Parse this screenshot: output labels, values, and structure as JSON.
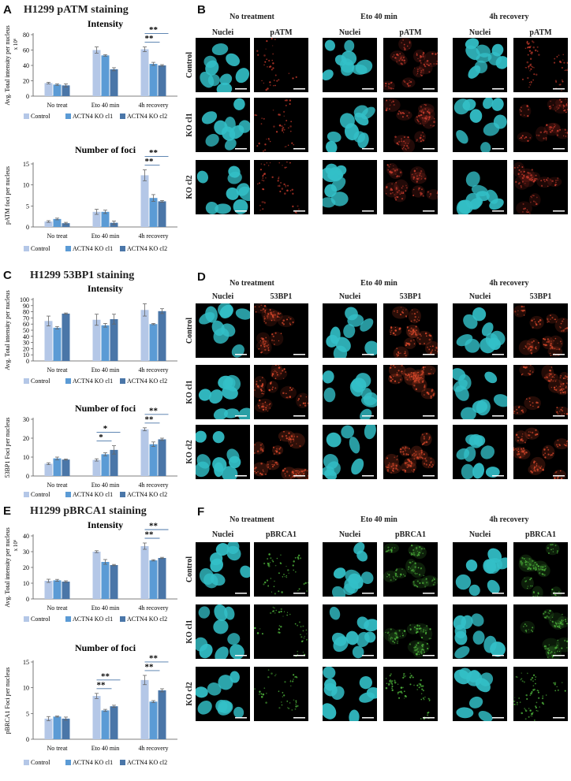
{
  "panels": {
    "A": {
      "letter": "A",
      "title": "H1299 pATM staining"
    },
    "B": {
      "letter": "B",
      "marker": "pATM"
    },
    "C": {
      "letter": "C",
      "title": "H1299 53BP1 staining"
    },
    "D": {
      "letter": "D",
      "marker": "53BP1"
    },
    "E": {
      "letter": "E",
      "title": "H1299 pBRCA1 staining"
    },
    "F": {
      "letter": "F",
      "marker": "pBRCA1"
    }
  },
  "micro_labels": {
    "conditions": [
      "No treatment",
      "Eto  40 min",
      "4h recovery"
    ],
    "nuclei": "Nuclei",
    "rows": [
      "Control",
      "KO cl1",
      "KO cl2"
    ]
  },
  "colors": {
    "control": "#b4c7e7",
    "cl1": "#5b9bd5",
    "cl2": "#4a76a8",
    "nuclei": "#33c0c8",
    "pATM": "#c0392b",
    "53BP1": "#d2462a",
    "pBRCA1": "#4caf3a"
  },
  "chart_data": [
    {
      "id": "A-intensity",
      "type": "bar",
      "title": "Intensity",
      "ylabel": "Avg. Total intensity per nucleus",
      "yunit": "x 10⁶",
      "ylim": [
        0,
        80
      ],
      "yticks": [
        0,
        20,
        40,
        60,
        80
      ],
      "categories": [
        "No treat",
        "Eto 40 min",
        "4h recovery"
      ],
      "series": [
        {
          "name": "Control",
          "values": [
            17,
            60,
            61
          ],
          "errors": [
            1,
            4,
            3
          ]
        },
        {
          "name": "ACTN4 KO cl1",
          "values": [
            15,
            53,
            42
          ],
          "errors": [
            1,
            1,
            2
          ]
        },
        {
          "name": "ACTN4 KO cl2",
          "values": [
            14,
            35,
            40
          ],
          "errors": [
            2,
            2,
            1
          ]
        }
      ],
      "significance": [
        {
          "category": 2,
          "from": 0,
          "to": 1,
          "label": "**"
        },
        {
          "category": 2,
          "from": 0,
          "to": 2,
          "label": "**"
        }
      ]
    },
    {
      "id": "A-foci",
      "type": "bar",
      "title": "Number of foci",
      "ylabel": "pATM foci per nucleus",
      "yunit": "",
      "ylim": [
        0,
        15
      ],
      "yticks": [
        0,
        5,
        10,
        15
      ],
      "categories": [
        "No treat",
        "Eto 40 min",
        "4h recovery"
      ],
      "series": [
        {
          "name": "Control",
          "values": [
            1.3,
            3.6,
            12.3
          ],
          "errors": [
            0.2,
            0.6,
            1.3
          ]
        },
        {
          "name": "ACTN4 KO cl1",
          "values": [
            1.9,
            3.6,
            6.9
          ],
          "errors": [
            0.2,
            0.4,
            0.8
          ]
        },
        {
          "name": "ACTN4 KO cl2",
          "values": [
            0.9,
            1.0,
            6.1
          ],
          "errors": [
            0.2,
            0.4,
            0.2
          ]
        }
      ],
      "significance": [
        {
          "category": 2,
          "from": 0,
          "to": 1,
          "label": "**"
        },
        {
          "category": 2,
          "from": 0,
          "to": 2,
          "label": "**"
        }
      ]
    },
    {
      "id": "C-intensity",
      "type": "bar",
      "title": "Intensity",
      "ylabel": "Avg. Total intensity per nucleus",
      "yunit": "",
      "ylim": [
        0,
        100
      ],
      "yticks": [
        0,
        10,
        20,
        30,
        40,
        50,
        60,
        70,
        80,
        90,
        100
      ],
      "categories": [
        "No treat",
        "Eto 40 min",
        "4h recovery"
      ],
      "series": [
        {
          "name": "Control",
          "values": [
            65,
            67,
            83
          ],
          "errors": [
            8,
            9,
            10
          ]
        },
        {
          "name": "ACTN4 KO cl1",
          "values": [
            54,
            58,
            60
          ],
          "errors": [
            2,
            3,
            1
          ]
        },
        {
          "name": "ACTN4 KO cl2",
          "values": [
            77,
            68,
            81
          ],
          "errors": [
            1,
            8,
            4
          ]
        }
      ],
      "significance": []
    },
    {
      "id": "C-foci",
      "type": "bar",
      "title": "Number of foci",
      "ylabel": "53BP1 Foci per nucleus",
      "yunit": "",
      "ylim": [
        0,
        30
      ],
      "yticks": [
        0,
        10,
        20,
        30
      ],
      "categories": [
        "No treat",
        "Eto 40 min",
        "4h recovery"
      ],
      "series": [
        {
          "name": "Control",
          "values": [
            6.5,
            8.5,
            24.7
          ],
          "errors": [
            0.5,
            0.6,
            0.8
          ]
        },
        {
          "name": "ACTN4 KO cl1",
          "values": [
            9.3,
            11.5,
            16.8
          ],
          "errors": [
            0.7,
            0.8,
            1.2
          ]
        },
        {
          "name": "ACTN4 KO cl2",
          "values": [
            8.7,
            13.8,
            19.4
          ],
          "errors": [
            0.3,
            2.2,
            0.6
          ]
        }
      ],
      "significance": [
        {
          "category": 1,
          "from": 0,
          "to": 1,
          "label": "*"
        },
        {
          "category": 1,
          "from": 0,
          "to": 2,
          "label": "*"
        },
        {
          "category": 2,
          "from": 0,
          "to": 1,
          "label": "**"
        },
        {
          "category": 2,
          "from": 0,
          "to": 2,
          "label": "**"
        }
      ]
    },
    {
      "id": "E-intensity",
      "type": "bar",
      "title": "Intensity",
      "ylabel": "Avg. Total intensity per nucleus",
      "yunit": "x 10⁶",
      "ylim": [
        0,
        40
      ],
      "yticks": [
        0,
        10,
        20,
        30,
        40
      ],
      "categories": [
        "No treat",
        "Eto 40 min",
        "4h recovery"
      ],
      "series": [
        {
          "name": "Control",
          "values": [
            11.5,
            30,
            33.5
          ],
          "errors": [
            1,
            0.6,
            2
          ]
        },
        {
          "name": "ACTN4 KO cl1",
          "values": [
            11.8,
            23.5,
            24.5
          ],
          "errors": [
            0.6,
            1.5,
            0.4
          ]
        },
        {
          "name": "ACTN4 KO cl2",
          "values": [
            11,
            21.5,
            26
          ],
          "errors": [
            0.5,
            0.4,
            0.4
          ]
        }
      ],
      "significance": [
        {
          "category": 2,
          "from": 0,
          "to": 1,
          "label": "**"
        },
        {
          "category": 2,
          "from": 0,
          "to": 2,
          "label": "**"
        }
      ]
    },
    {
      "id": "E-foci",
      "type": "bar",
      "title": "Number of foci",
      "ylabel": "pBRCA1 Foci per nucleus",
      "yunit": "",
      "ylim": [
        0,
        15
      ],
      "yticks": [
        0,
        5,
        10,
        15
      ],
      "categories": [
        "No treat",
        "Eto 40 min",
        "4h recovery"
      ],
      "series": [
        {
          "name": "Control",
          "values": [
            4.0,
            8.4,
            11.5
          ],
          "errors": [
            0.4,
            0.5,
            0.9
          ]
        },
        {
          "name": "ACTN4 KO cl1",
          "values": [
            4.4,
            5.6,
            7.3
          ],
          "errors": [
            0.1,
            0.2,
            0.2
          ]
        },
        {
          "name": "ACTN4 KO cl2",
          "values": [
            4.0,
            6.4,
            9.5
          ],
          "errors": [
            0.3,
            0.2,
            0.3
          ]
        }
      ],
      "significance": [
        {
          "category": 1,
          "from": 0,
          "to": 1,
          "label": "**"
        },
        {
          "category": 1,
          "from": 0,
          "to": 2,
          "label": "**"
        },
        {
          "category": 2,
          "from": 0,
          "to": 1,
          "label": "**"
        },
        {
          "category": 2,
          "from": 0,
          "to": 2,
          "label": "**"
        }
      ]
    }
  ]
}
